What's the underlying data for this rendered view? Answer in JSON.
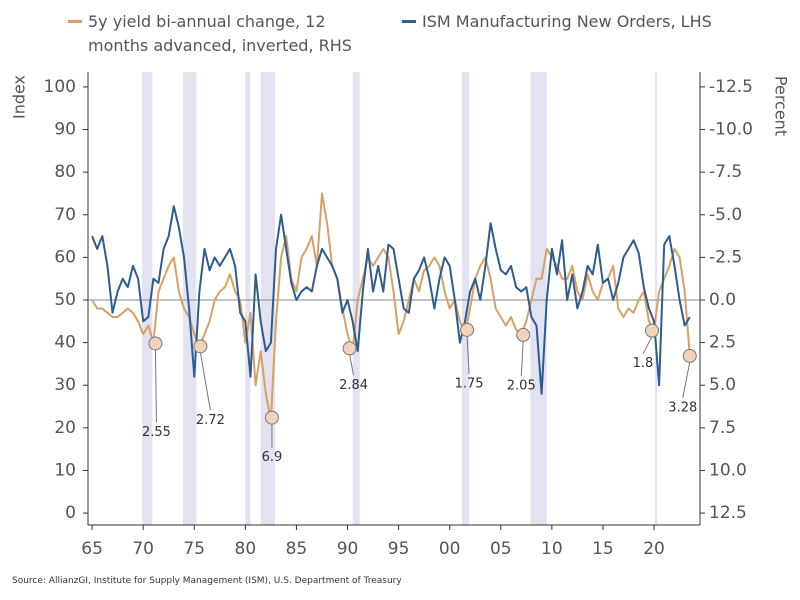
{
  "chart_data": {
    "type": "line",
    "source": "Source: AllianzGI, Institute for Supply Management (ISM), U.S. Department of Treasury",
    "ylabel": "Index",
    "y2label": "Percent",
    "xlim": [
      1964.6,
      2024.5
    ],
    "xticks": [
      {
        "value": 1965,
        "label": "65"
      },
      {
        "value": 1970,
        "label": "70"
      },
      {
        "value": 1975,
        "label": "75"
      },
      {
        "value": 1980,
        "label": "80"
      },
      {
        "value": 1985,
        "label": "85"
      },
      {
        "value": 1990,
        "label": "90"
      },
      {
        "value": 1995,
        "label": "95"
      },
      {
        "value": 2000,
        "label": "00"
      },
      {
        "value": 2005,
        "label": "05"
      },
      {
        "value": 2010,
        "label": "10"
      },
      {
        "value": 2015,
        "label": "15"
      },
      {
        "value": 2020,
        "label": "20"
      }
    ],
    "ylim": [
      -2.8,
      103.5
    ],
    "yticks": [
      0,
      10,
      20,
      30,
      40,
      50,
      60,
      70,
      80,
      90,
      100
    ],
    "y2lim": [
      13.2,
      -13.375
    ],
    "y2ticks": [
      12.5,
      {
        "value": 10,
        "label": "10.0"
      },
      7.5,
      {
        "value": 5,
        "label": "5.0"
      },
      2.5,
      {
        "value": 0,
        "label": "0.0"
      },
      -2.5,
      {
        "value": -5,
        "label": "-5.0"
      },
      -7.5,
      {
        "value": -10,
        "label": "-10.0"
      },
      -12.5
    ],
    "y2_reference_line": 0,
    "recessions": [
      [
        1969.9,
        1970.9
      ],
      [
        1973.9,
        1975.2
      ],
      [
        1980.0,
        1980.5
      ],
      [
        1981.5,
        1982.9
      ],
      [
        1990.5,
        1991.2
      ],
      [
        2001.2,
        2001.9
      ],
      [
        2007.9,
        2009.5
      ],
      [
        2020.1,
        2020.3
      ]
    ],
    "recession_color": "#e2e2f0",
    "x": [
      1965,
      1965.5,
      1966,
      1966.5,
      1967,
      1967.5,
      1968,
      1968.5,
      1969,
      1969.5,
      1970,
      1970.5,
      1971,
      1971.5,
      1972,
      1972.5,
      1973,
      1973.5,
      1974,
      1974.5,
      1975,
      1975.5,
      1976,
      1976.5,
      1977,
      1977.5,
      1978,
      1978.5,
      1979,
      1979.5,
      1980,
      1980.5,
      1981,
      1981.5,
      1982,
      1982.5,
      1983,
      1983.5,
      1984,
      1984.5,
      1985,
      1985.5,
      1986,
      1986.5,
      1987,
      1987.5,
      1988,
      1988.5,
      1989,
      1989.5,
      1990,
      1990.5,
      1991,
      1991.5,
      1992,
      1992.5,
      1993,
      1993.5,
      1994,
      1994.5,
      1995,
      1995.5,
      1996,
      1996.5,
      1997,
      1997.5,
      1998,
      1998.5,
      1999,
      1999.5,
      2000,
      2000.5,
      2001,
      2001.5,
      2002,
      2002.5,
      2003,
      2003.5,
      2004,
      2004.5,
      2005,
      2005.5,
      2006,
      2006.5,
      2007,
      2007.5,
      2008,
      2008.5,
      2009,
      2009.5,
      2010,
      2010.5,
      2011,
      2011.5,
      2012,
      2012.5,
      2013,
      2013.5,
      2014,
      2014.5,
      2015,
      2015.5,
      2016,
      2016.5,
      2017,
      2017.5,
      2018,
      2018.5,
      2019,
      2019.5,
      2020,
      2020.5,
      2021,
      2021.5,
      2022,
      2022.5,
      2023,
      2023.5
    ],
    "series": [
      {
        "name": "5y yield bi-annual change, 12 months advanced, inverted, RHS",
        "color": "#d9a066",
        "axis": "y2",
        "values": [
          0,
          0.5,
          0.5,
          0.75,
          1,
          1,
          0.75,
          0.5,
          0.75,
          1.25,
          2,
          1.5,
          2.5,
          -0.5,
          -1.25,
          -2,
          -2.5,
          -0.5,
          0.5,
          1,
          2,
          2.75,
          2,
          1.25,
          0,
          -0.5,
          -0.75,
          -1.5,
          -0.5,
          0,
          2.5,
          0.75,
          5,
          3,
          5.5,
          7,
          1.25,
          -2.5,
          -3.75,
          -1.25,
          -0.5,
          -2.5,
          -3,
          -3.75,
          -2,
          -6.25,
          -4.5,
          -2,
          -1.25,
          0.5,
          2,
          3,
          0,
          -1.25,
          -2.5,
          -2,
          -2.5,
          -3,
          -2.5,
          -0.5,
          2,
          1.25,
          0,
          -1.25,
          -0.5,
          -1.75,
          -2,
          -2.5,
          -2,
          -0.5,
          0.5,
          0,
          1.25,
          2,
          0.5,
          -1.25,
          -2,
          -2.5,
          -1.25,
          0.5,
          1,
          1.5,
          1,
          1.75,
          2,
          1.25,
          0,
          -1.25,
          -1.25,
          -3,
          -2.5,
          -2,
          -1.25,
          -1.25,
          -2,
          -0.5,
          0,
          -1.5,
          -0.5,
          0,
          -1,
          -1.25,
          -2,
          0.5,
          1,
          0.5,
          0.75,
          0,
          -0.5,
          1.25,
          1.75,
          -0.5,
          -1.25,
          -2,
          -3,
          -2.5,
          -0.5,
          3.25
        ]
      },
      {
        "name": "ISM Manufacturing New Orders, LHS",
        "color": "#2d5c92",
        "values": [
          65,
          62,
          65,
          58,
          47,
          52,
          55,
          53,
          58,
          55,
          45,
          46,
          55,
          54,
          62,
          65,
          72,
          67,
          60,
          48,
          32,
          52,
          62,
          57,
          60,
          58,
          60,
          62,
          58,
          47,
          45,
          32,
          56,
          45,
          38,
          40,
          62,
          70,
          62,
          54,
          50,
          52,
          53,
          52,
          58,
          62,
          60,
          58,
          55,
          47,
          50,
          45,
          38,
          52,
          62,
          52,
          58,
          52,
          63,
          62,
          55,
          48,
          47,
          55,
          57,
          60,
          55,
          48,
          55,
          60,
          58,
          50,
          40,
          45,
          52,
          55,
          50,
          58,
          68,
          62,
          57,
          56,
          58,
          53,
          52,
          53,
          46,
          44,
          28,
          50,
          62,
          56,
          64,
          50,
          56,
          48,
          52,
          58,
          56,
          63,
          54,
          55,
          50,
          54,
          60,
          62,
          64,
          61,
          53,
          48,
          45,
          30,
          63,
          65,
          58,
          50,
          44,
          46
        ]
      }
    ],
    "annotations": [
      {
        "x": 1971.2,
        "value": 2.55
      },
      {
        "x": 1975.6,
        "value": 2.72
      },
      {
        "x": 1982.6,
        "value": 6.9
      },
      {
        "x": 1990.2,
        "value": 2.84
      },
      {
        "x": 2001.7,
        "value": 1.75
      },
      {
        "x": 2007.2,
        "value": 2.05
      },
      {
        "x": 2019.8,
        "value": 1.8
      },
      {
        "x": 2023.5,
        "value": 3.28
      }
    ]
  }
}
